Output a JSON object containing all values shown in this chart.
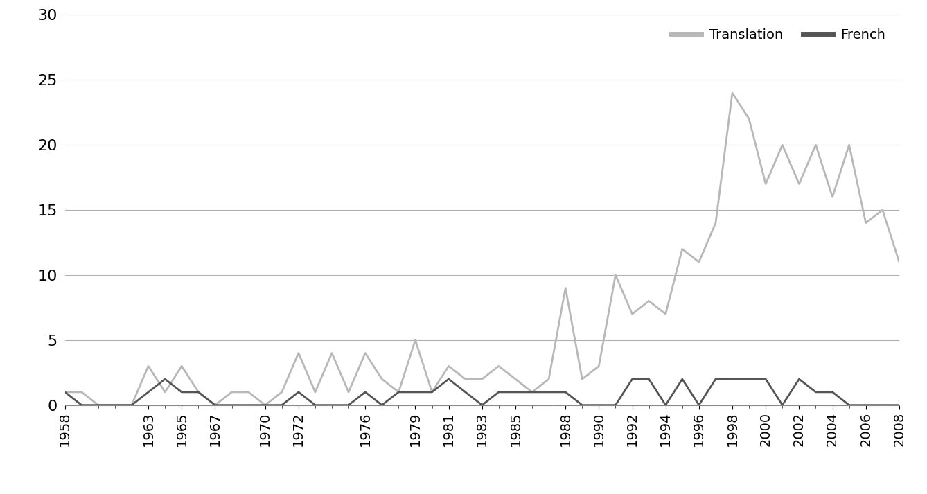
{
  "years": [
    1958,
    1959,
    1960,
    1961,
    1962,
    1963,
    1964,
    1965,
    1966,
    1967,
    1968,
    1969,
    1970,
    1971,
    1972,
    1973,
    1974,
    1975,
    1976,
    1977,
    1978,
    1979,
    1980,
    1981,
    1982,
    1983,
    1984,
    1985,
    1986,
    1987,
    1988,
    1989,
    1990,
    1991,
    1992,
    1993,
    1994,
    1995,
    1996,
    1997,
    1998,
    1999,
    2000,
    2001,
    2002,
    2003,
    2004,
    2005,
    2006,
    2007,
    2008
  ],
  "translation": [
    1,
    1,
    0,
    0,
    0,
    3,
    1,
    3,
    1,
    0,
    1,
    1,
    0,
    1,
    4,
    1,
    4,
    1,
    4,
    2,
    1,
    5,
    1,
    3,
    2,
    2,
    3,
    2,
    1,
    2,
    9,
    2,
    3,
    10,
    7,
    8,
    7,
    12,
    11,
    14,
    24,
    22,
    17,
    20,
    17,
    20,
    16,
    20,
    14,
    15,
    11
  ],
  "french": [
    1,
    0,
    0,
    0,
    0,
    1,
    2,
    1,
    1,
    0,
    0,
    0,
    0,
    0,
    1,
    0,
    0,
    0,
    1,
    0,
    1,
    1,
    1,
    2,
    1,
    0,
    1,
    1,
    1,
    1,
    1,
    0,
    0,
    0,
    2,
    2,
    0,
    2,
    0,
    2,
    2,
    2,
    2,
    0,
    2,
    1,
    1,
    0,
    0,
    0,
    0
  ],
  "translation_color": "#b8b8b8",
  "french_color": "#555555",
  "ylim": [
    0,
    30
  ],
  "yticks": [
    0,
    5,
    10,
    15,
    20,
    25,
    30
  ],
  "xtick_labels": [
    "1958",
    "1963",
    "1965",
    "1967",
    "1970",
    "1972",
    "1976",
    "1979",
    "1981",
    "1983",
    "1985",
    "1988",
    "1990",
    "1992",
    "1994",
    "1996",
    "1998",
    "2000",
    "2002",
    "2004",
    "2006",
    "2008"
  ],
  "xtick_positions": [
    1958,
    1963,
    1965,
    1967,
    1970,
    1972,
    1976,
    1979,
    1981,
    1983,
    1985,
    1988,
    1990,
    1992,
    1994,
    1996,
    1998,
    2000,
    2002,
    2004,
    2006,
    2008
  ],
  "legend_translation": "Translation",
  "legend_french": "French",
  "line_width": 2.0,
  "background_color": "#ffffff",
  "grid_color": "#b0b0b0"
}
